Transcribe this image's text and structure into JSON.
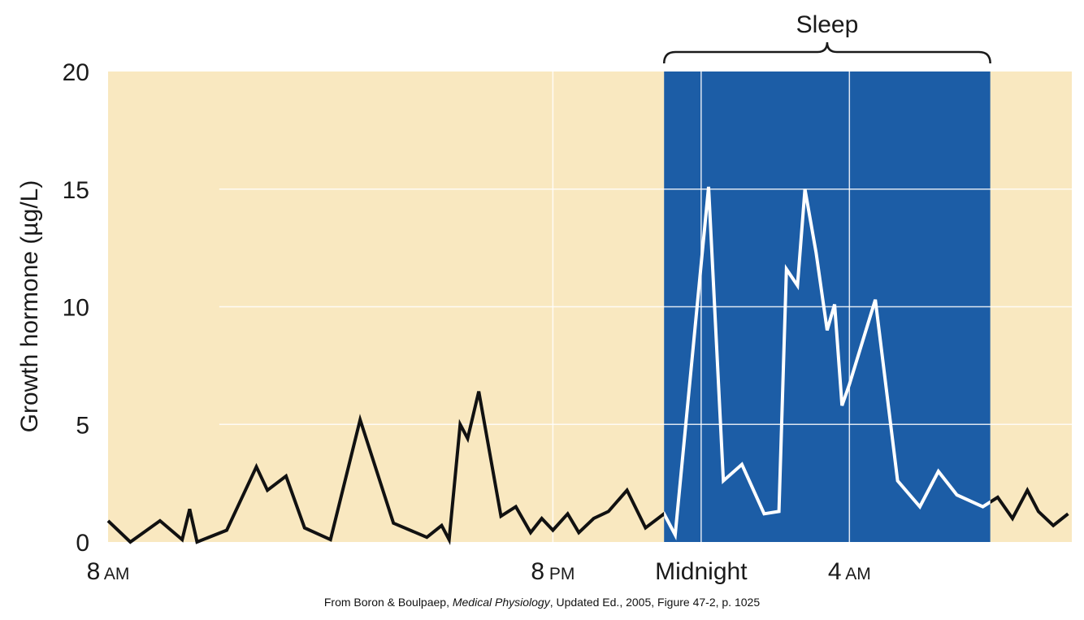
{
  "chart_data": {
    "type": "line",
    "title": "",
    "ylabel": "Growth hormone (µg/L)",
    "xlabel": "",
    "ylim": [
      0,
      20
    ],
    "xlim": [
      8,
      34
    ],
    "x_unit": "hours (clock time)",
    "yticks": [
      0,
      5,
      10,
      15,
      20
    ],
    "xticks": [
      {
        "value": 8,
        "num": "8",
        "suffix": "AM"
      },
      {
        "value": 20,
        "num": "8",
        "suffix": "PM"
      },
      {
        "value": 24,
        "num": "Midnight",
        "suffix": ""
      },
      {
        "value": 28,
        "num": "4",
        "suffix": "AM"
      }
    ],
    "grid": true,
    "sleep_band": {
      "label": "Sleep",
      "start": 23,
      "end": 31.8
    },
    "series": [
      {
        "name": "",
        "x": [
          8.0,
          8.6,
          9.4,
          10.0,
          10.2,
          10.4,
          11.2,
          12.0,
          12.3,
          12.8,
          13.3,
          14.0,
          14.8,
          15.7,
          16.6,
          17.0,
          17.2,
          17.5,
          17.7,
          18.0,
          18.6,
          19.0,
          19.4,
          19.7,
          20.0,
          20.4,
          20.7,
          21.1,
          21.5,
          22.0,
          22.5,
          23.0,
          23.3,
          24.2,
          24.6,
          25.1,
          25.7,
          26.1,
          26.3,
          26.6,
          26.8,
          27.1,
          27.4,
          27.6,
          27.8,
          28.0,
          28.7,
          29.3,
          29.9,
          30.4,
          30.9,
          31.6,
          32.0,
          32.4,
          32.8,
          33.1,
          33.5,
          33.9
        ],
        "y": [
          0.9,
          0.0,
          0.9,
          0.1,
          1.4,
          0.0,
          0.5,
          3.2,
          2.2,
          2.8,
          0.6,
          0.1,
          5.2,
          0.8,
          0.2,
          0.7,
          0.1,
          5.0,
          4.4,
          6.4,
          1.1,
          1.5,
          0.4,
          1.0,
          0.5,
          1.2,
          0.4,
          1.0,
          1.3,
          2.2,
          0.6,
          1.2,
          0.3,
          15.1,
          2.6,
          3.3,
          1.2,
          1.3,
          11.6,
          10.9,
          15.0,
          12.3,
          9.0,
          10.1,
          5.8,
          6.7,
          10.3,
          2.6,
          1.5,
          3.0,
          2.0,
          1.5,
          1.9,
          1.0,
          2.2,
          1.3,
          0.7,
          1.2
        ]
      }
    ],
    "colors": {
      "background": "#f9e8c0",
      "sleep_band": "#1c5da6",
      "grid": "#ffffff",
      "line_awake": "#111111",
      "line_sleep": "#ffffff"
    }
  },
  "caption": {
    "prefix": "From Boron & Boulpaep, ",
    "italic": "Medical Physiology",
    "suffix": ", Updated Ed., 2005, Figure 47-2, p. 1025"
  }
}
